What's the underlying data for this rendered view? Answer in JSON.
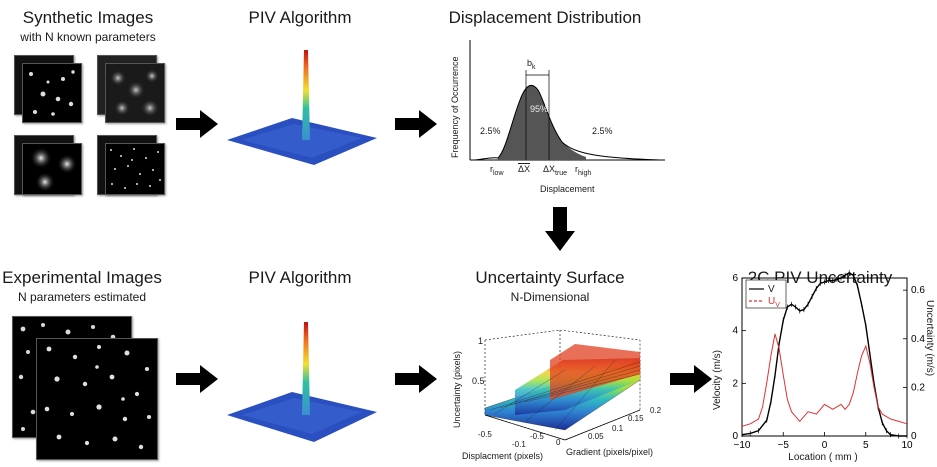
{
  "row1": {
    "synthetic_title": "Synthetic Images",
    "synthetic_sub": "with N known parameters",
    "piv_title": "PIV Algorithm",
    "dist_title": "Displacement Distribution"
  },
  "row2": {
    "experimental_title": "Experimental Images",
    "experimental_sub": "N parameters estimated",
    "piv_title": "PIV Algorithm",
    "surface_title": "Uncertainty Surface",
    "surface_sub": "N-Dimensional",
    "unc_title": "2C PIV Uncertainty"
  },
  "dist_plot": {
    "ylabel": "Frequency of Occurrence",
    "xlabel": "Displacement",
    "bk": "b",
    "bk_sub": "k",
    "pct_center": "95%",
    "pct_left": "2.5%",
    "pct_right": "2.5%",
    "tick_rlow": "r",
    "tick_rlow_sub": "low",
    "tick_mean": "ΔX",
    "tick_true": "ΔX",
    "tick_true_sub": "true",
    "tick_rhigh": "r",
    "tick_rhigh_sub": "high"
  },
  "surface_plot": {
    "zlabel": "Uncertainty (pixels)",
    "xlabel": "Displacment (pixels)",
    "ylabel": "Gradient (pixels/pixel)",
    "z_ticks": [
      "1",
      "0.5"
    ],
    "x_ticks": [
      "-0.5",
      "-0.1",
      "-0.5",
      "0"
    ],
    "y_ticks": [
      "0.05",
      "0.1",
      "0.15",
      "0.2"
    ]
  },
  "chart_data": {
    "type": "line",
    "title": "2C PIV Uncertainty",
    "xlabel": "Location ( mm )",
    "ylabel": "Velocity (m/s)",
    "y2label": "Uncertainty (m/s)",
    "xlim": [
      -10,
      10
    ],
    "ylim": [
      0,
      6
    ],
    "y2lim": [
      0,
      0.65
    ],
    "x_ticks": [
      "−10",
      "−5",
      "0",
      "5",
      "10"
    ],
    "y_ticks": [
      "0",
      "2",
      "4",
      "6"
    ],
    "y2_ticks": [
      "0",
      "0.2",
      "0.4",
      "0.6"
    ],
    "legend_position": "top-left",
    "series": [
      {
        "name": "V",
        "axis": "left",
        "color": "#000000",
        "x": [
          -10,
          -9,
          -8,
          -7,
          -6.5,
          -6,
          -5.5,
          -5,
          -4.5,
          -4,
          -3.5,
          -3,
          -2.5,
          -2,
          -1.5,
          -1,
          -0.5,
          0,
          0.5,
          1,
          1.5,
          2,
          2.5,
          3,
          3.5,
          4,
          4.5,
          5,
          5.5,
          6,
          6.5,
          7,
          7.5,
          8,
          9,
          10
        ],
        "y": [
          0.05,
          0.1,
          0.2,
          0.6,
          1.3,
          2.3,
          3.5,
          4.4,
          4.9,
          5.0,
          4.9,
          4.75,
          4.8,
          5.0,
          5.3,
          5.6,
          5.8,
          5.85,
          5.9,
          5.9,
          5.95,
          6.0,
          6.1,
          6.2,
          6.1,
          5.7,
          5.0,
          4.2,
          3.1,
          2.0,
          1.1,
          0.5,
          0.2,
          0.05,
          0.0,
          0.0
        ]
      },
      {
        "name": "U",
        "name_sub": "V",
        "axis": "right",
        "color": "#e03030",
        "x": [
          -10,
          -9,
          -8,
          -7.5,
          -7,
          -6.5,
          -6,
          -5.5,
          -5,
          -4.5,
          -4,
          -3,
          -2,
          -1,
          -0.5,
          0,
          0.5,
          1,
          1.5,
          2,
          2.5,
          3,
          3.5,
          4,
          4.5,
          5,
          5.5,
          6,
          6.5,
          7,
          7.5,
          8,
          9,
          10
        ],
        "y": [
          0.04,
          0.05,
          0.07,
          0.12,
          0.22,
          0.33,
          0.42,
          0.36,
          0.25,
          0.15,
          0.1,
          0.06,
          0.1,
          0.09,
          0.11,
          0.13,
          0.12,
          0.11,
          0.12,
          0.13,
          0.11,
          0.13,
          0.18,
          0.26,
          0.33,
          0.37,
          0.3,
          0.2,
          0.12,
          0.09,
          0.08,
          0.07,
          0.06,
          0.05
        ]
      }
    ]
  }
}
